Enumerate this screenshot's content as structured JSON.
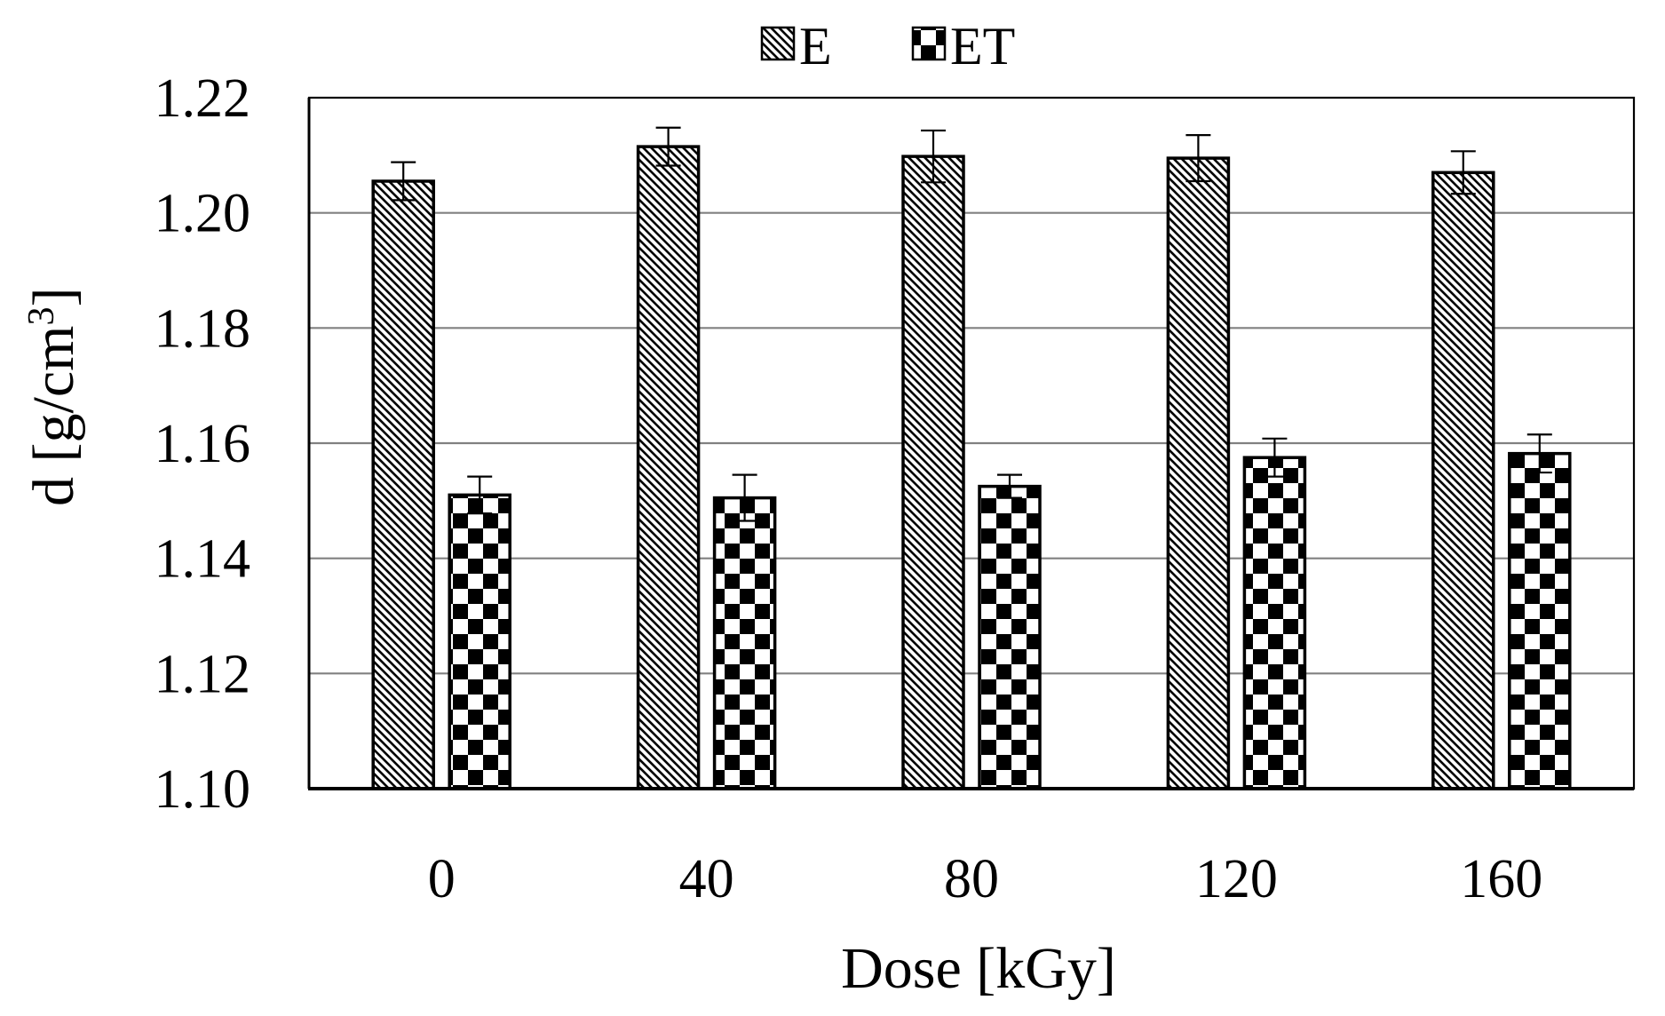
{
  "chart_data": {
    "type": "bar",
    "title": "",
    "xlabel": "Dose [kGy]",
    "ylabel": "d [g/cm",
    "ylabel_superscript": "3",
    "ylabel_suffix": "]",
    "categories": [
      "0",
      "40",
      "80",
      "120",
      "160"
    ],
    "ylim": [
      1.1,
      1.22
    ],
    "yticks": [
      "1.10",
      "1.12",
      "1.14",
      "1.16",
      "1.18",
      "1.20",
      "1.22"
    ],
    "grid": true,
    "legend_position": "top-center",
    "series": [
      {
        "name": "E",
        "pattern": "diagonal-hatch",
        "values": [
          1.2055,
          1.2115,
          1.2098,
          1.2095,
          1.207
        ],
        "errors": [
          0.0033,
          0.0033,
          0.0045,
          0.004,
          0.0037
        ]
      },
      {
        "name": "ET",
        "pattern": "checkerboard",
        "values": [
          1.151,
          1.1505,
          1.1525,
          1.1575,
          1.1582
        ],
        "errors": [
          0.0032,
          0.004,
          0.002,
          0.0033,
          0.0033
        ]
      }
    ],
    "colors": {
      "axis": "#000000",
      "grid": "#808080",
      "bar_fill": "#ffffff",
      "pattern": "#000000"
    }
  }
}
